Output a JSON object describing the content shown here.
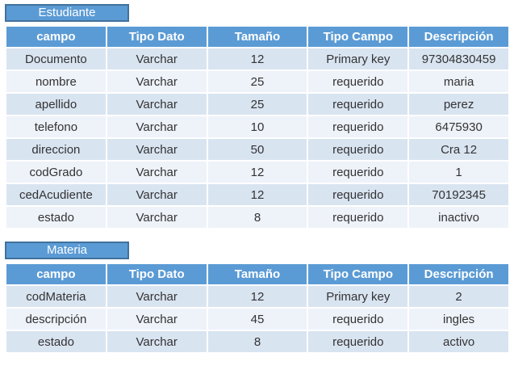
{
  "colors": {
    "header_bg": "#5b9bd5",
    "title_box_bg": "#5b9bd5",
    "title_box_border": "#41719c",
    "row_band_dark": "#d9e4f1",
    "row_band_light": "#eef2f9",
    "header_text": "#ffffff",
    "body_text": "#333333"
  },
  "tables": [
    {
      "title": "Estudiante",
      "headers": [
        "campo",
        "Tipo Dato",
        "Tamaño",
        "Tipo Campo",
        "Descripción"
      ],
      "rows": [
        [
          "Documento",
          "Varchar",
          "12",
          "Primary key",
          "97304830459"
        ],
        [
          "nombre",
          "Varchar",
          "25",
          "requerido",
          "maria"
        ],
        [
          "apellido",
          "Varchar",
          "25",
          "requerido",
          "perez"
        ],
        [
          "telefono",
          "Varchar",
          "10",
          "requerido",
          "6475930"
        ],
        [
          "direccion",
          "Varchar",
          "50",
          "requerido",
          "Cra 12"
        ],
        [
          "codGrado",
          "Varchar",
          "12",
          "requerido",
          "1"
        ],
        [
          "cedAcudiente",
          "Varchar",
          "12",
          "requerido",
          "70192345"
        ],
        [
          "estado",
          "Varchar",
          "8",
          "requerido",
          "inactivo"
        ]
      ]
    },
    {
      "title": "Materia",
      "headers": [
        "campo",
        "Tipo Dato",
        "Tamaño",
        "Tipo Campo",
        "Descripción"
      ],
      "rows": [
        [
          "codMateria",
          "Varchar",
          "12",
          "Primary key",
          "2"
        ],
        [
          "descripción",
          "Varchar",
          "45",
          "requerido",
          "ingles"
        ],
        [
          "estado",
          "Varchar",
          "8",
          "requerido",
          "activo"
        ]
      ]
    }
  ]
}
